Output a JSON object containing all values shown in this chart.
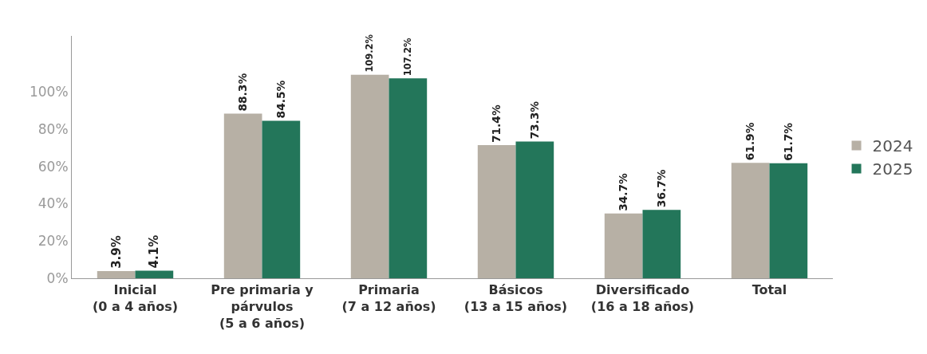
{
  "chart_data": {
    "type": "bar",
    "categories": [
      "Inicial\n(0 a 4 años)",
      "Pre primaria y\npárvulos\n(5 a 6 años)",
      "Primaria\n(7 a 12 años)",
      "Básicos\n(13 a 15 años)",
      "Diversificado\n(16 a 18 años)",
      "Total"
    ],
    "series": [
      {
        "name": "2024",
        "color": "#b7b0a5",
        "values": [
          3.9,
          88.3,
          109.2,
          71.4,
          34.7,
          61.9
        ],
        "value_labels": [
          "3.9%",
          "88.3%",
          "109.2%",
          "71.4%",
          "34.7%",
          "61.9%"
        ]
      },
      {
        "name": "2025",
        "color": "#23765a",
        "values": [
          4.1,
          84.5,
          107.2,
          73.3,
          36.7,
          61.7
        ],
        "value_labels": [
          "4.1%",
          "84.5%",
          "107.2%",
          "73.3%",
          "36.7%",
          "61.7%"
        ]
      }
    ],
    "ylim": [
      0,
      130
    ],
    "yticks": [
      {
        "value": 0,
        "label": "0%"
      },
      {
        "value": 20,
        "label": "20%"
      },
      {
        "value": 40,
        "label": "40%"
      },
      {
        "value": 60,
        "label": "60%"
      },
      {
        "value": 80,
        "label": "80%"
      },
      {
        "value": 100,
        "label": "100%"
      }
    ],
    "grid": false,
    "legend": "right"
  }
}
